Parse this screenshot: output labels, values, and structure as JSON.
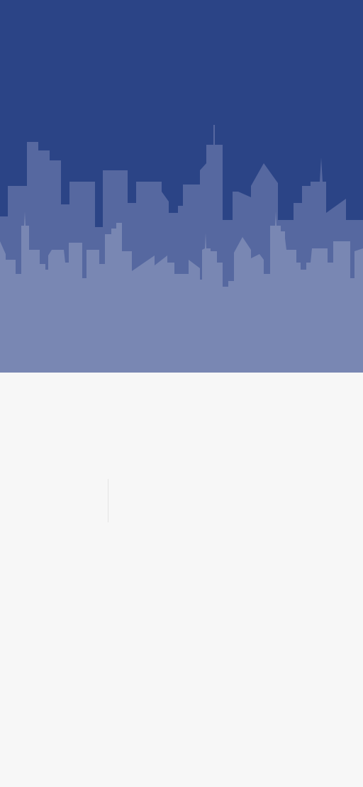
{
  "colors": {
    "sky": "#2b4486",
    "skyline_back": "#5668a0",
    "skyline_front": "#7987b3",
    "background": "#f7f7f7",
    "caret": "#e4e4e4"
  },
  "hero": {
    "illustration": "city-skyline"
  }
}
